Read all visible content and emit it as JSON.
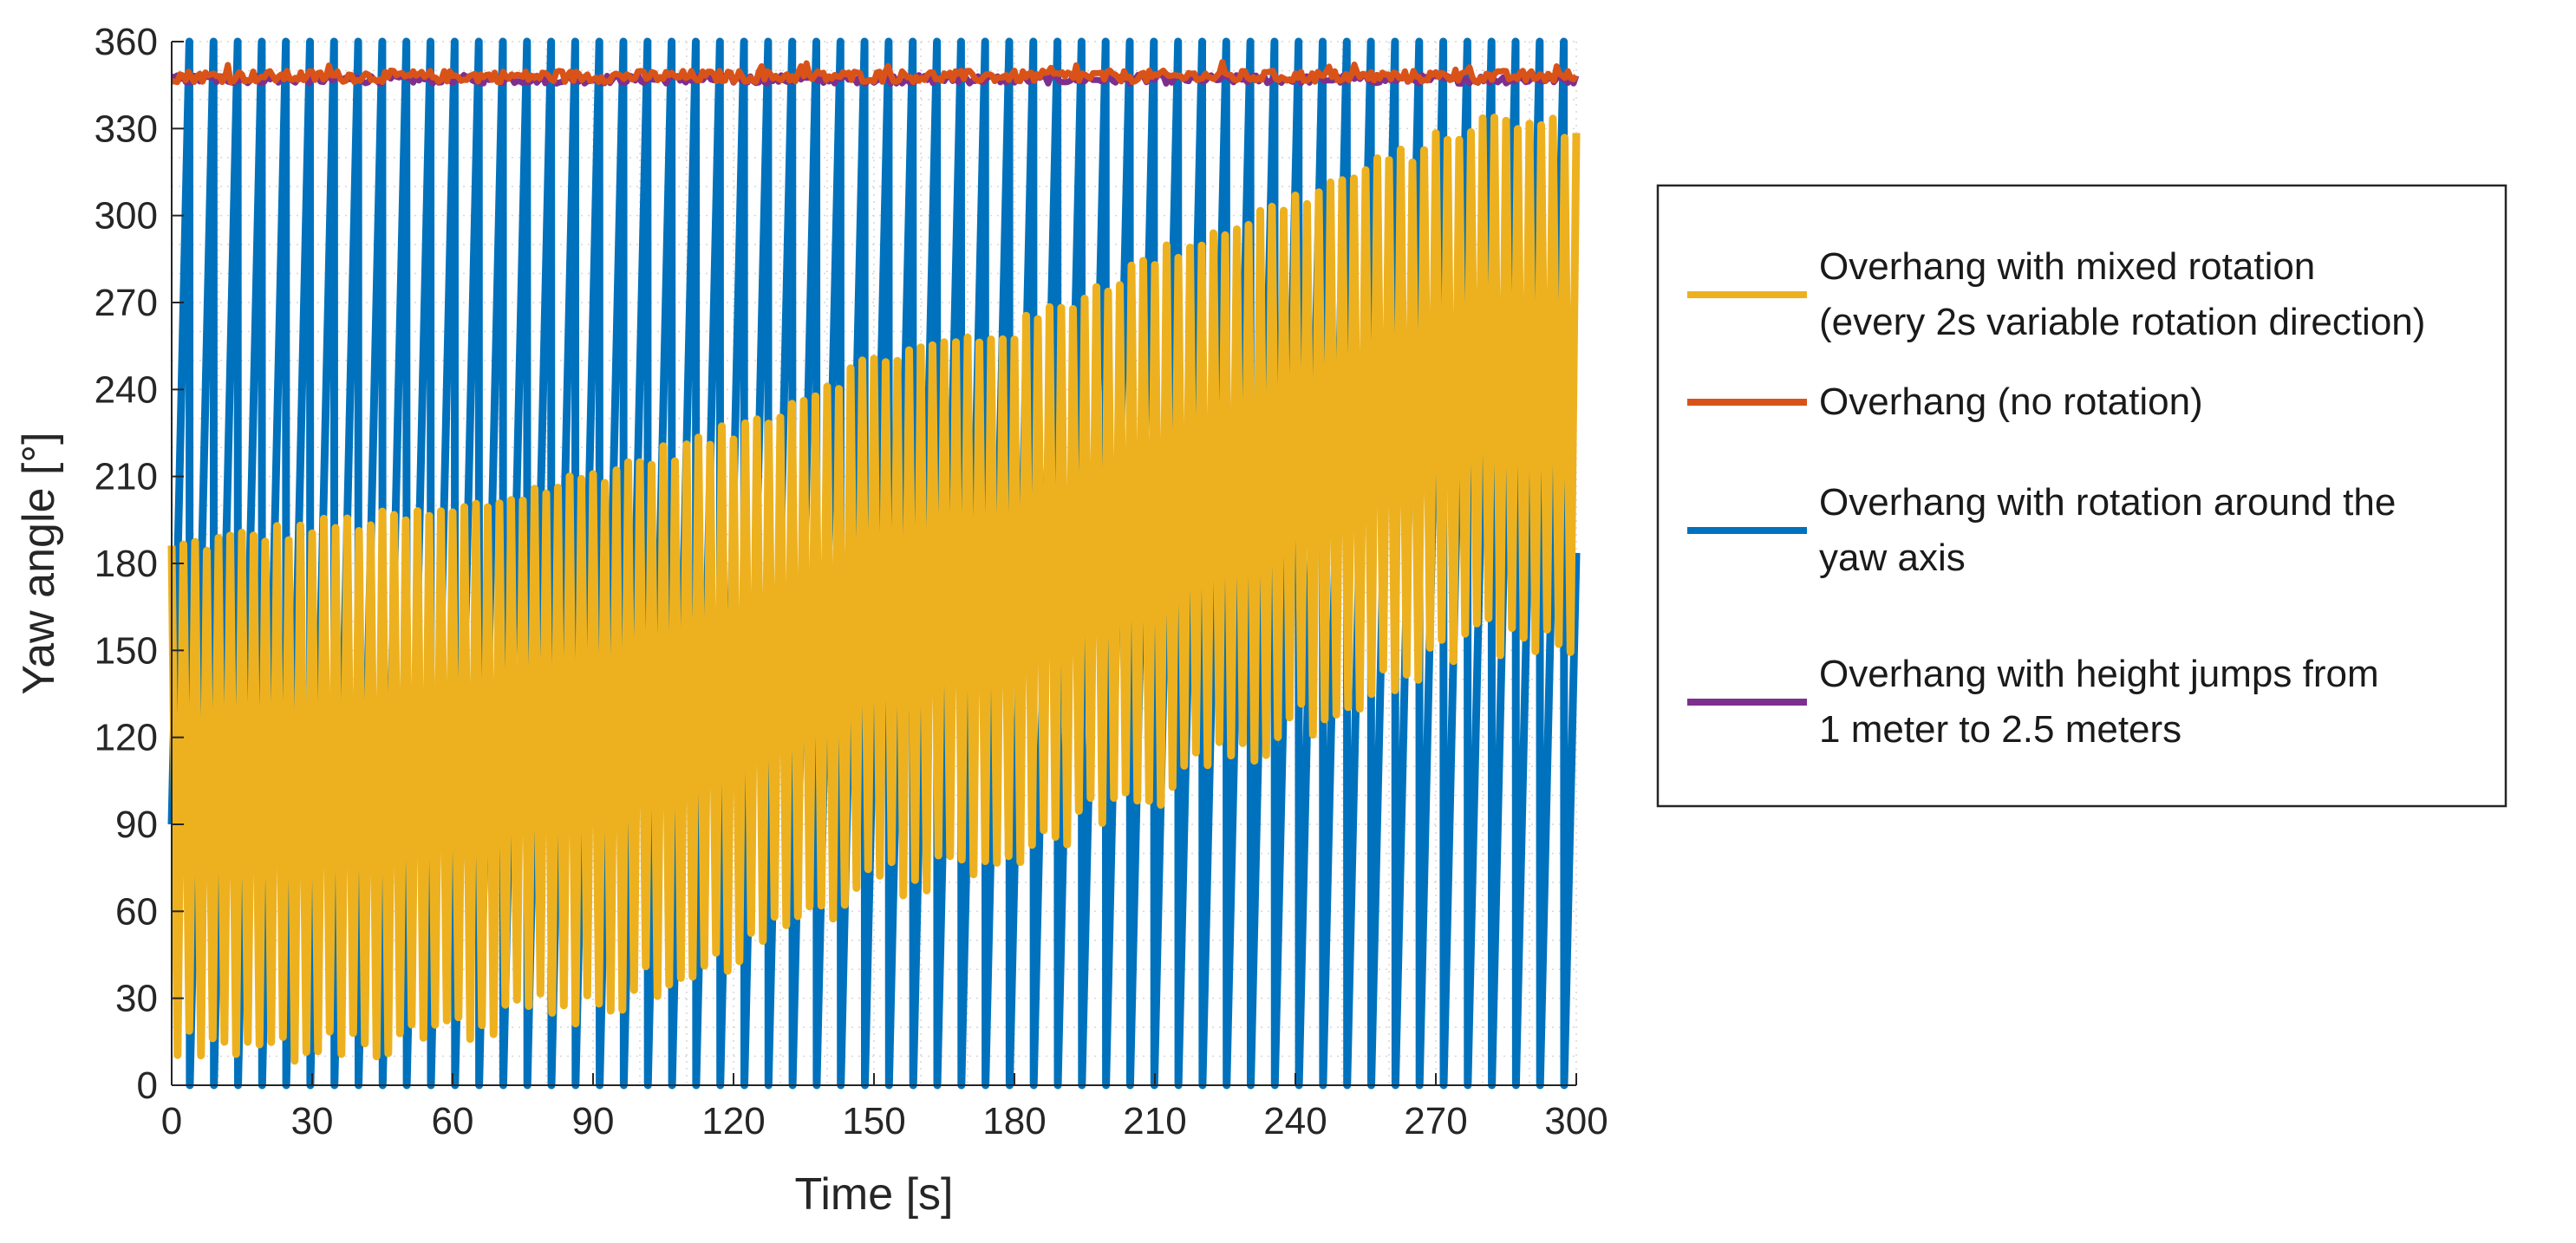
{
  "chart_data": {
    "type": "line",
    "title": "",
    "xlabel": "Time [s]",
    "ylabel": "Yaw angle [°]",
    "xlim": [
      0,
      300
    ],
    "ylim": [
      0,
      360
    ],
    "x_ticks": [
      0,
      30,
      60,
      90,
      120,
      150,
      180,
      210,
      240,
      270,
      300
    ],
    "y_ticks": [
      0,
      30,
      60,
      90,
      120,
      150,
      180,
      210,
      240,
      270,
      300,
      330,
      360
    ],
    "grid": "dotted",
    "legend_position": "right-outside",
    "series": [
      {
        "name": "Overhang with mixed rotation (every 2s variable rotation direction)",
        "legend_lines": [
          "Overhang with mixed rotation",
          "(every 2s variable rotation direction)"
        ],
        "color": "#EDB120",
        "description": "oscillating band; approximate envelope sampled every 30 s",
        "envelope_time": [
          0,
          30,
          60,
          90,
          120,
          150,
          180,
          210,
          240,
          270,
          280,
          300
        ],
        "envelope_upper": [
          185,
          192,
          197,
          210,
          225,
          250,
          260,
          285,
          305,
          325,
          332,
          330
        ],
        "envelope_lower": [
          5,
          8,
          12,
          22,
          40,
          62,
          75,
          95,
          118,
          140,
          148,
          145
        ],
        "oscillation_period_s": 2.5
      },
      {
        "name": "Overhang (no rotation)",
        "legend_lines": [
          "Overhang (no rotation)"
        ],
        "color": "#D95319",
        "description": "nearly constant",
        "mean_value": 348,
        "noise_amplitude": 2
      },
      {
        "name": "Overhang with rotation around the yaw axis",
        "legend_lines": [
          "Overhang with rotation around the",
          "yaw axis"
        ],
        "color": "#0072BD",
        "description": "sawtooth wrapping 0 to 360",
        "min_value": 0,
        "max_value": 360,
        "period_s": 5.15
      },
      {
        "name": "Overhang with height jumps from 1 meter to 2.5 meters",
        "legend_lines": [
          "Overhang with height jumps from",
          "1 meter to 2.5 meters"
        ],
        "color": "#7E2F8E",
        "description": "nearly constant",
        "mean_value": 347,
        "noise_amplitude": 1.5
      }
    ]
  }
}
